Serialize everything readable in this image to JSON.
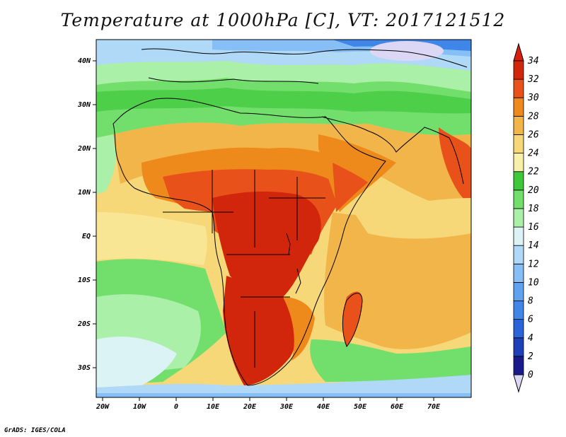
{
  "title": "Temperature at 1000hPa [C], VT: 2017121512",
  "credit": "GrADS: IGES/COLA",
  "map": {
    "lat_labels": [
      "40N",
      "30N",
      "20N",
      "10N",
      "EQ",
      "10S",
      "20S",
      "30S"
    ],
    "lon_labels": [
      "20W",
      "10W",
      "0",
      "10E",
      "20E",
      "30E",
      "40E",
      "50E",
      "60E",
      "70E"
    ]
  },
  "colorbar": {
    "levels": [
      "0",
      "2",
      "4",
      "6",
      "8",
      "10",
      "12",
      "14",
      "16",
      "18",
      "20",
      "22",
      "24",
      "26",
      "28",
      "30",
      "32",
      "34"
    ],
    "colors": [
      "#1a1a8c",
      "#1d3fb8",
      "#2a64d8",
      "#3f86e8",
      "#5fa3f0",
      "#86bff5",
      "#b0d8f7",
      "#dcf3f5",
      "#aaf0a8",
      "#72df6c",
      "#3ec83a",
      "#f8f0a8",
      "#f7d878",
      "#f2b54a",
      "#ee8a1c",
      "#e8521a",
      "#d2260c"
    ],
    "under_color": "#dcd7f5",
    "over_color": "#d8200c"
  }
}
